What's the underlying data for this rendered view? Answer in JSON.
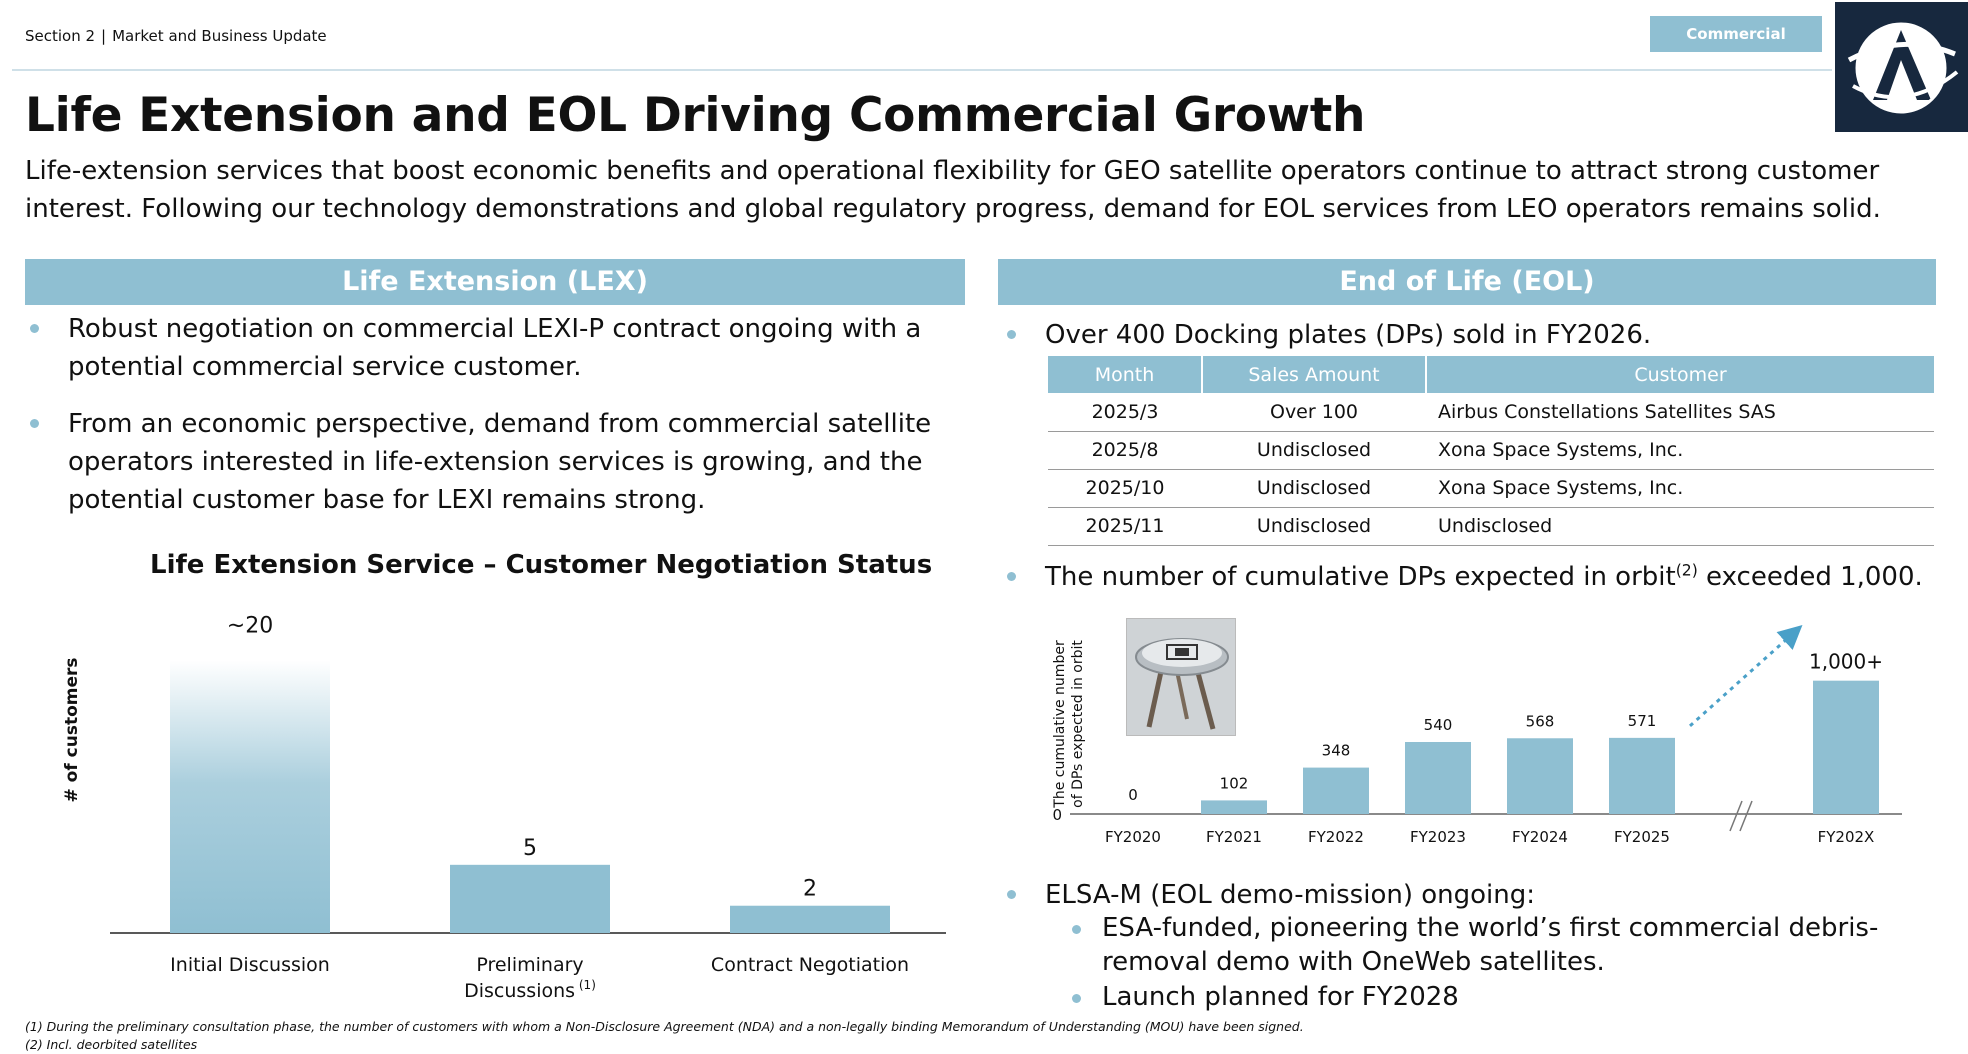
{
  "header": {
    "section": "Section 2",
    "separator": "|",
    "subtitle": "Market and Business Update",
    "tag": "Commercial",
    "logo_letter": "A"
  },
  "title": "Life Extension and EOL Driving Commercial Growth",
  "intro": "Life-extension services that boost economic benefits and operational flexibility for GEO satellite operators continue to attract strong customer interest. Following our technology demonstrations and global regulatory progress, demand for EOL services from LEO operators remains solid.",
  "left_panel": {
    "header": "Life Extension (LEX)",
    "bullets": [
      "Robust negotiation on commercial LEXI-P contract ongoing with a potential commercial service customer.",
      "From an economic perspective, demand from commercial satellite operators interested in life-extension services is growing, and the potential customer base for LEXI remains strong."
    ]
  },
  "right_panel": {
    "header": "End of Life (EOL)",
    "bullet1": "Over 400 Docking plates (DPs) sold in FY2026.",
    "table": {
      "columns": [
        "Month",
        "Sales Amount",
        "Customer"
      ],
      "rows": [
        [
          "2025/3",
          "Over 100",
          "Airbus Constellations Satellites SAS"
        ],
        [
          "2025/8",
          "Undisclosed",
          "Xona Space Systems, Inc."
        ],
        [
          "2025/10",
          "Undisclosed",
          "Xona Space Systems, Inc."
        ],
        [
          "2025/11",
          "Undisclosed",
          "Undisclosed"
        ]
      ]
    },
    "bullet2_text": "The number of cumulative DPs expected in orbit",
    "bullet2_sup": "(2)",
    "bullet2_tail": " exceeded 1,000.",
    "bullet3": "ELSA-M (EOL demo-mission) ongoing:",
    "sub_bullets": [
      "ESA-funded, pioneering the world’s first commercial debris-removal demo with OneWeb satellites.",
      "Launch planned for FY2028"
    ]
  },
  "chart_data": [
    {
      "type": "bar",
      "title": "Life Extension Service – Customer Negotiation Status",
      "ylabel": "# of customers",
      "xlabel": "",
      "categories": [
        "Initial Discussion",
        "Preliminary Discussions",
        "Contract Negotiation"
      ],
      "category_footnote": [
        "",
        "(1)",
        ""
      ],
      "values": [
        20,
        5,
        2
      ],
      "value_labels": [
        "~20",
        "5",
        "2"
      ],
      "ylim": [
        0,
        22
      ],
      "grid": false,
      "color": "#8fbfd2"
    },
    {
      "type": "bar",
      "title": "",
      "ylabel": "The cumulative number of DPs expected in orbit",
      "xlabel": "",
      "categories": [
        "FY2020",
        "FY2021",
        "FY2022",
        "FY2023",
        "FY2024",
        "FY2025",
        "FY202X"
      ],
      "values": [
        0,
        102,
        348,
        540,
        568,
        571,
        1000
      ],
      "value_labels": [
        "0",
        "102",
        "348",
        "540",
        "568",
        "571",
        "1,000+"
      ],
      "y_tick_label": "0",
      "ylim": [
        0,
        1200
      ],
      "grid": false,
      "axis_break_before": "FY202X",
      "color": "#8fbfd2"
    }
  ],
  "footnotes": [
    "(1) During the preliminary consultation phase, the number of customers with whom a Non-Disclosure Agreement (NDA) and a non-legally binding Memorandum of Understanding (MOU) have been signed.",
    "(2) Incl. deorbited satellites"
  ],
  "colors": {
    "accent": "#8fbfd2",
    "logo_bg": "#17283e",
    "text": "#111111"
  }
}
